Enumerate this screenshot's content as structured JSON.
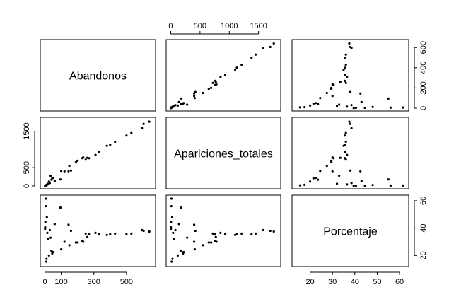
{
  "chart_data": {
    "type": "scatter",
    "variables": [
      "Abandonos",
      "Apariciones_totales",
      "Porcentaje"
    ],
    "ranges": {
      "Abandonos": [
        0,
        650
      ],
      "Apariciones_totales": [
        0,
        1800
      ],
      "Porcentaje": [
        14,
        62
      ]
    },
    "ticks": {
      "Abandonos": {
        "values": [
          0,
          100,
          300,
          500
        ],
        "labels": [
          "0",
          "100",
          "300",
          "500"
        ]
      },
      "Abandonos_right": {
        "values": [
          0,
          200,
          400,
          600
        ],
        "labels": [
          "0",
          "200",
          "400",
          "600"
        ]
      },
      "Apariciones_totales": {
        "values": [
          0,
          500,
          1000,
          1500
        ],
        "labels": [
          "0",
          "500",
          "1000",
          "1500"
        ]
      },
      "Apariciones_totales_left": {
        "values": [
          0,
          500,
          1500
        ],
        "labels": [
          "0",
          "500",
          "1500"
        ]
      },
      "Porcentaje": {
        "values": [
          20,
          30,
          40,
          50,
          60
        ],
        "labels": [
          "20",
          "30",
          "40",
          "50",
          "60"
        ]
      },
      "Porcentaje_right": {
        "values": [
          20,
          40,
          60
        ],
        "labels": [
          "20",
          "40",
          "60"
        ]
      }
    },
    "grid": false,
    "points": [
      {
        "a": 640,
        "t": 1760,
        "p": 37.5
      },
      {
        "a": 605,
        "t": 1700,
        "p": 38
      },
      {
        "a": 595,
        "t": 1580,
        "p": 38.5
      },
      {
        "a": 530,
        "t": 1450,
        "p": 36
      },
      {
        "a": 500,
        "t": 1380,
        "p": 35.5
      },
      {
        "a": 430,
        "t": 1210,
        "p": 36
      },
      {
        "a": 400,
        "t": 1130,
        "p": 35.5
      },
      {
        "a": 380,
        "t": 1100,
        "p": 35
      },
      {
        "a": 330,
        "t": 930,
        "p": 35.5
      },
      {
        "a": 310,
        "t": 850,
        "p": 36.5
      },
      {
        "a": 270,
        "t": 760,
        "p": 35.5
      },
      {
        "a": 250,
        "t": 720,
        "p": 36
      },
      {
        "a": 260,
        "t": 770,
        "p": 33.5
      },
      {
        "a": 235,
        "t": 780,
        "p": 30
      },
      {
        "a": 230,
        "t": 760,
        "p": 30.5
      },
      {
        "a": 200,
        "t": 690,
        "p": 29.5
      },
      {
        "a": 190,
        "t": 650,
        "p": 29.5
      },
      {
        "a": 150,
        "t": 550,
        "p": 27.5
      },
      {
        "a": 160,
        "t": 420,
        "p": 38
      },
      {
        "a": 145,
        "t": 400,
        "p": 42.5
      },
      {
        "a": 120,
        "t": 400,
        "p": 30
      },
      {
        "a": 100,
        "t": 410,
        "p": 24.5
      },
      {
        "a": 95,
        "t": 180,
        "p": 55
      },
      {
        "a": 60,
        "t": 140,
        "p": 43
      },
      {
        "a": 50,
        "t": 220,
        "p": 22.5
      },
      {
        "a": 45,
        "t": 210,
        "p": 21.5
      },
      {
        "a": 40,
        "t": 170,
        "p": 23.5
      },
      {
        "a": 35,
        "t": 280,
        "p": 33
      },
      {
        "a": 30,
        "t": 80,
        "p": 38.5
      },
      {
        "a": 25,
        "t": 120,
        "p": 20
      },
      {
        "a": 20,
        "t": 60,
        "p": 32
      },
      {
        "a": 15,
        "t": 40,
        "p": 36.5
      },
      {
        "a": 12,
        "t": 25,
        "p": 48
      },
      {
        "a": 10,
        "t": 30,
        "p": 17.5
      },
      {
        "a": 8,
        "t": 15,
        "p": 15.5
      },
      {
        "a": 6,
        "t": 12,
        "p": 61.5
      },
      {
        "a": 5,
        "t": 10,
        "p": 56
      },
      {
        "a": 3,
        "t": 5,
        "p": 44.5
      },
      {
        "a": 2,
        "t": 3,
        "p": 40.5
      },
      {
        "a": 1,
        "t": 2,
        "p": 39.5
      }
    ]
  }
}
